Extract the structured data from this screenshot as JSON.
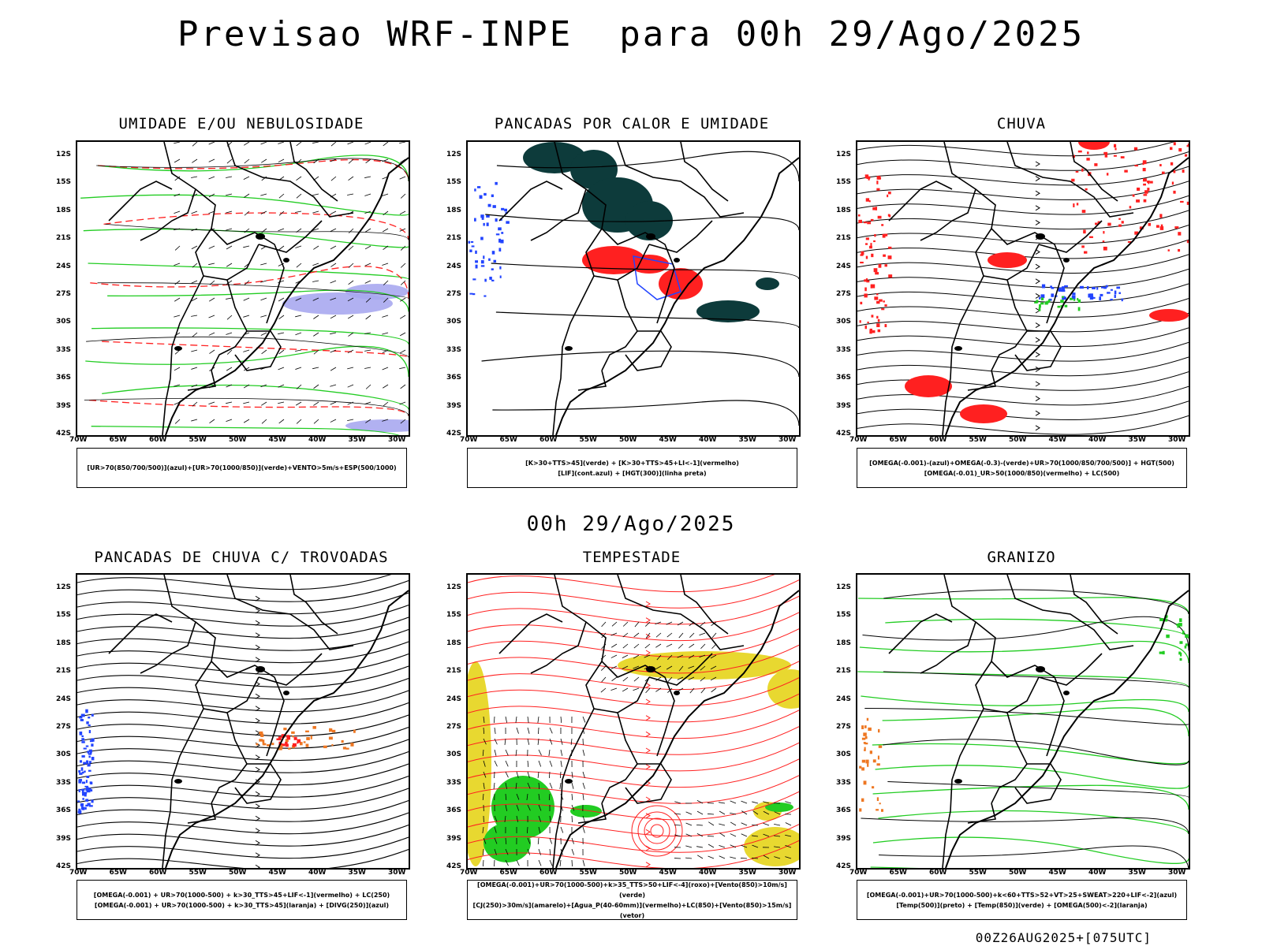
{
  "title": "Previsao WRF-INPE  para 00h 29/Ago/2025",
  "subtitle": "00h 29/Ago/2025",
  "footer": "00Z26AUG2025+[075UTC]",
  "lat_ticks": [
    "12S",
    "15S",
    "18S",
    "21S",
    "24S",
    "27S",
    "30S",
    "33S",
    "36S",
    "39S",
    "42S"
  ],
  "lon_ticks": [
    "70W",
    "65W",
    "60W",
    "55W",
    "50W",
    "45W",
    "40W",
    "35W",
    "30W"
  ],
  "panels": [
    {
      "title": "UMIDADE E/OU NEBULOSIDADE",
      "legend": [
        "[UR>70(850/700/500)](azul)+[UR>70(1000/850)](verde)+VENTO>5m/s+ESP(500/1000)"
      ]
    },
    {
      "title": "PANCADAS POR CALOR E UMIDADE",
      "legend": [
        "[K>30+TTS>45](verde) + [K>30+TTS>45+LI<-1](vermelho)",
        "[LIF](cont.azul) + [HGT(300)](linha preta)"
      ]
    },
    {
      "title": "CHUVA",
      "legend": [
        "[OMEGA(-0.001)-(azul)+OMEGA(-0.3)-(verde)+UR>70(1000/850/700/500)] + HGT(500)",
        "[OMEGA(-0.01)_UR>50(1000/850)(vermelho) + LC(500)"
      ]
    },
    {
      "title": "PANCADAS DE CHUVA C/ TROVOADAS",
      "legend": [
        "[OMEGA(-0.001) + UR>70(1000-500) + k>30_TTS>45+LIF<-1](vermelho) + LC(250)",
        "[OMEGA(-0.001) + UR>70(1000-500) + k>30_TTS>45](laranja) + [DIVG(250)](azul)"
      ]
    },
    {
      "title": "TEMPESTADE",
      "legend": [
        "[OMEGA(-0.001)+UR>70(1000-500)+k>35_TTS>50+LIF<-4](roxo)+[Vento(850)>10m/s](verde)",
        "[CJ(250)>30m/s](amarelo)+[Agua_P(40-60mm)](vermelho)+LC(850)+[Vento(850)>15m/s](vetor)"
      ]
    },
    {
      "title": "GRANIZO",
      "legend": [
        "[OMEGA(-0.001)+UR>70(1000-500)+k<60+TTS>52+VT>25+SWEAT>220+LIF<-2](azul)",
        "[Temp(500)](preto) + [Temp(850)](verde) + [OMEGA(500)<-2](laranja)"
      ]
    }
  ],
  "colors": {
    "red": "#ff2020",
    "green": "#22cc22",
    "blue": "#2244ff",
    "darkteal": "#0d3b3b",
    "yellow": "#e8d830",
    "orange": "#ee7722",
    "lavender": "#a9a9f0"
  }
}
